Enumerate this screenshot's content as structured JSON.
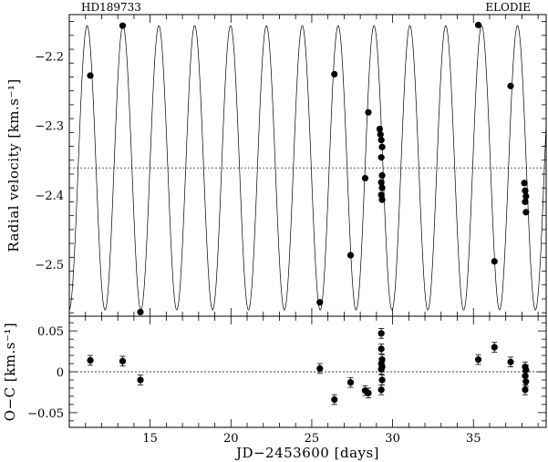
{
  "header": {
    "left_label": "HD189733",
    "right_label": "ELODIE"
  },
  "chart_data": [
    {
      "type": "scatter",
      "panel": "radial-velocity",
      "title": "",
      "xlabel": "",
      "ylabel": "Radial velocity [km.s⁻¹]",
      "xlim": [
        10,
        39.5
      ],
      "ylim": [
        -2.575,
        -2.14
      ],
      "yticks": [
        -2.5,
        -2.4,
        -2.3,
        -2.2
      ],
      "ytick_labels": [
        "−2.5",
        "−2.4",
        "−2.3",
        "−2.2"
      ],
      "reference_line": {
        "y": -2.361,
        "style": "dotted"
      },
      "model": {
        "curve": "sinusoid",
        "period_days": 2.2186,
        "center": -2.361,
        "amplitude": 0.205,
        "phase_ref_x": 13.32
      },
      "series": [
        {
          "points": [
            [
              11.3,
              -2.228
            ],
            [
              13.3,
              -2.156
            ],
            [
              14.4,
              -2.569
            ],
            [
              25.5,
              -2.555
            ],
            [
              26.4,
              -2.226
            ],
            [
              27.4,
              -2.487
            ],
            [
              28.3,
              -2.376
            ],
            [
              28.5,
              -2.281
            ],
            [
              29.2,
              -2.305
            ],
            [
              29.25,
              -2.313
            ],
            [
              29.3,
              -2.321
            ],
            [
              29.35,
              -2.331
            ],
            [
              29.3,
              -2.346
            ],
            [
              29.35,
              -2.372
            ],
            [
              29.3,
              -2.382
            ],
            [
              29.35,
              -2.39
            ],
            [
              29.3,
              -2.4
            ],
            [
              29.35,
              -2.407
            ],
            [
              35.3,
              -2.155
            ],
            [
              36.3,
              -2.496
            ],
            [
              37.3,
              -2.243
            ],
            [
              38.15,
              -2.383
            ],
            [
              38.2,
              -2.394
            ],
            [
              38.25,
              -2.402
            ],
            [
              38.2,
              -2.41
            ],
            [
              38.25,
              -2.425
            ]
          ]
        }
      ]
    },
    {
      "type": "scatter",
      "panel": "residuals",
      "title": "",
      "xlabel": "JD−2453600 [days]",
      "ylabel": "O−C [km.s⁻¹]",
      "xlim": [
        10,
        39.5
      ],
      "ylim": [
        -0.068,
        0.068
      ],
      "xticks": [
        15,
        20,
        25,
        30,
        35
      ],
      "xtick_labels": [
        "15",
        "20",
        "25",
        "30",
        "35"
      ],
      "yticks": [
        -0.05,
        0,
        0.05
      ],
      "ytick_labels": [
        "−0.05",
        "0",
        "0.05"
      ],
      "reference_line": {
        "y": 0,
        "style": "dotted"
      },
      "series": [
        {
          "points": [
            [
              11.3,
              0.014
            ],
            [
              13.3,
              0.013
            ],
            [
              14.4,
              -0.01
            ],
            [
              25.5,
              0.004
            ],
            [
              26.4,
              -0.034
            ],
            [
              27.4,
              -0.013
            ],
            [
              28.3,
              -0.023
            ],
            [
              28.5,
              -0.026
            ],
            [
              29.3,
              0.047
            ],
            [
              29.3,
              0.028
            ],
            [
              29.35,
              0.015
            ],
            [
              29.3,
              0.01
            ],
            [
              29.35,
              0.006
            ],
            [
              29.3,
              0.003
            ],
            [
              29.35,
              -0.01
            ],
            [
              29.3,
              -0.022
            ],
            [
              35.3,
              0.015
            ],
            [
              36.3,
              0.03
            ],
            [
              37.3,
              0.012
            ],
            [
              38.2,
              0.006
            ],
            [
              38.25,
              0.002
            ],
            [
              38.2,
              -0.005
            ],
            [
              38.25,
              -0.012
            ],
            [
              38.2,
              -0.022
            ]
          ],
          "error": 0.006
        }
      ]
    }
  ]
}
